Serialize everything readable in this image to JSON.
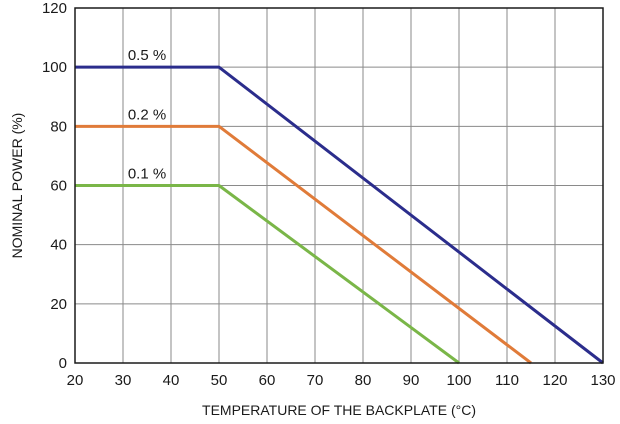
{
  "chart_data": {
    "type": "line",
    "title": "",
    "xlabel": "TEMPERATURE OF THE BACKPLATE (°C)",
    "ylabel": "NOMINAL POWER (%)",
    "xlim": [
      20,
      130
    ],
    "ylim": [
      0,
      120
    ],
    "xticks": [
      20,
      30,
      40,
      50,
      60,
      70,
      80,
      90,
      100,
      110,
      120,
      130
    ],
    "yticks": [
      0,
      20,
      40,
      60,
      80,
      100,
      120
    ],
    "grid": true,
    "series": [
      {
        "name": "0.5 %",
        "color": "#2b2d8c",
        "x": [
          20,
          50,
          130
        ],
        "y": [
          100,
          100,
          0
        ]
      },
      {
        "name": "0.2 %",
        "color": "#e07b39",
        "x": [
          20,
          50,
          115
        ],
        "y": [
          80,
          80,
          0
        ]
      },
      {
        "name": "0.1 %",
        "color": "#7ab648",
        "x": [
          20,
          50,
          100
        ],
        "y": [
          60,
          60,
          0
        ]
      }
    ]
  }
}
